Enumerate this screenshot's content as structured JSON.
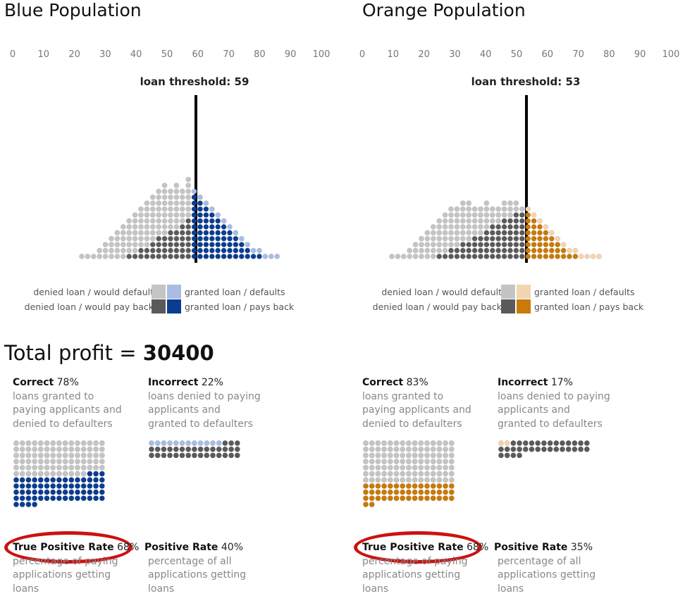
{
  "blue": {
    "title": "Blue Population",
    "ticks": [
      "0",
      "10",
      "20",
      "30",
      "40",
      "50",
      "60",
      "70",
      "80",
      "90",
      "100"
    ],
    "threshold_label": "loan threshold: 59",
    "threshold": 59,
    "legend": {
      "denied_default": "denied loan / would default",
      "denied_payback": "denied loan / would pay back",
      "granted_default": "granted loan / defaults",
      "granted_payback": "granted loan / pays back"
    },
    "colors": {
      "light_gray": "#c4c4c4",
      "dark_gray": "#5a5a5a",
      "light": "#a9bde3",
      "dark": "#0a3d91"
    },
    "correct": {
      "title": "Correct",
      "pct": "78%",
      "desc": "loans granted to paying applicants and denied to defaulters"
    },
    "incorrect": {
      "title": "Incorrect",
      "pct": "22%",
      "desc": "loans denied to paying applicants and granted to defaulters"
    },
    "tpr": {
      "title": "True Positive Rate",
      "pct": "68%",
      "desc": "percentage of paying applications getting loans"
    },
    "pr": {
      "title": "Positive Rate",
      "pct": "40%",
      "desc": "percentage of all applications getting loans"
    }
  },
  "orange": {
    "title": "Orange Population",
    "ticks": [
      "0",
      "10",
      "20",
      "30",
      "40",
      "50",
      "60",
      "70",
      "80",
      "90",
      "100"
    ],
    "threshold_label": "loan threshold: 53",
    "threshold": 53,
    "legend": {
      "denied_default": "denied loan / would default",
      "denied_payback": "denied loan / would pay back",
      "granted_default": "granted loan / defaults",
      "granted_payback": "granted loan / pays back"
    },
    "colors": {
      "light_gray": "#c4c4c4",
      "dark_gray": "#5a5a5a",
      "light": "#f2d5b0",
      "dark": "#c97a07"
    },
    "correct": {
      "title": "Correct",
      "pct": "83%",
      "desc": "loans granted to paying applicants and denied to defaulters"
    },
    "incorrect": {
      "title": "Incorrect",
      "pct": "17%",
      "desc": "loans denied to paying applicants and granted to defaulters"
    },
    "tpr": {
      "title": "True Positive Rate",
      "pct": "68%",
      "desc": "percentage of paying applications getting loans"
    },
    "pr": {
      "title": "Positive Rate",
      "pct": "35%",
      "desc": "percentage of all applications getting loans"
    }
  },
  "profit": {
    "label": "Total profit = ",
    "value": "30400"
  }
}
